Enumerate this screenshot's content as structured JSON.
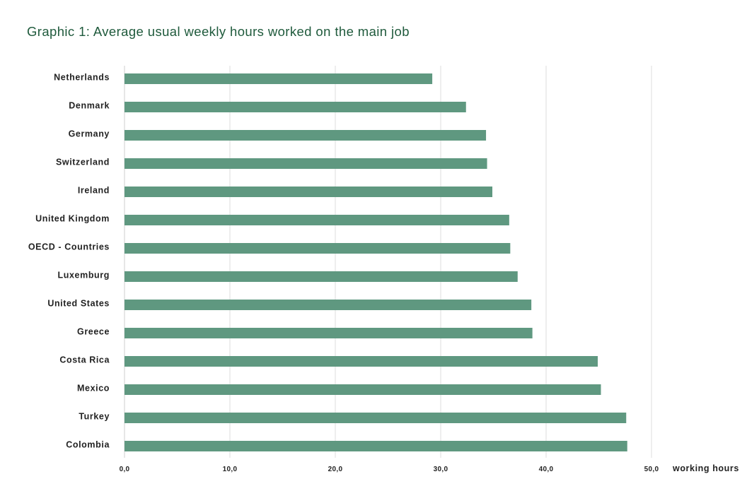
{
  "title": "Graphic 1: Average usual weekly hours worked on the main job",
  "chart_data": {
    "type": "bar",
    "orientation": "horizontal",
    "title": "Graphic 1: Average usual weekly hours worked on the main job",
    "xlabel": "working hours",
    "ylabel": "",
    "xlim": [
      0,
      50
    ],
    "ticks": [
      0,
      10,
      20,
      30,
      40,
      50
    ],
    "tick_labels": [
      "0,0",
      "10,0",
      "20,0",
      "30,0",
      "40,0",
      "50,0"
    ],
    "grid": true,
    "bar_color": "#5f9880",
    "categories": [
      "Netherlands",
      "Denmark",
      "Germany",
      "Switzerland",
      "Ireland",
      "United Kingdom",
      "OECD - Countries",
      "Luxemburg",
      "United States",
      "Greece",
      "Costa Rica",
      "Mexico",
      "Turkey",
      "Colombia"
    ],
    "values": [
      29.2,
      32.4,
      34.3,
      34.4,
      34.9,
      36.5,
      36.6,
      37.3,
      38.6,
      38.7,
      44.9,
      45.2,
      47.6,
      47.7
    ]
  }
}
